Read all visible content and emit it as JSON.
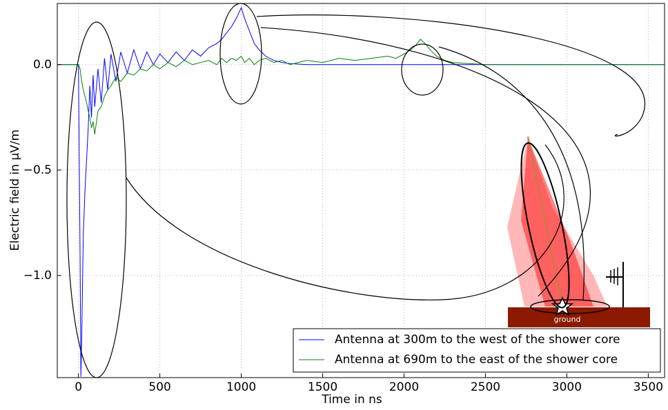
{
  "chart_data": {
    "type": "line",
    "xlabel": "Time in ns",
    "ylabel": "Electric field in μV/m",
    "x": [
      -130,
      -50,
      0,
      10,
      15,
      20,
      30,
      40,
      50,
      60,
      70,
      80,
      90,
      100,
      120,
      140,
      160,
      180,
      200,
      230,
      260,
      300,
      340,
      380,
      420,
      460,
      500,
      550,
      600,
      650,
      700,
      750,
      800,
      850,
      880,
      910,
      940,
      970,
      1000,
      1020,
      1050,
      1080,
      1110,
      1150,
      1200,
      1250,
      1300,
      1400,
      1500,
      1600,
      1700,
      1800,
      1900,
      1950,
      2000,
      2040,
      2070,
      2100,
      2130,
      2160,
      2200,
      2250,
      2300,
      2400,
      2500,
      2700,
      3000,
      3300,
      3600
    ],
    "series": [
      {
        "name": "Antenna at 300m to the west of the shower core",
        "color": "#0000ff",
        "values": [
          0,
          0,
          0,
          -0.9,
          -1.48,
          -1.3,
          -0.8,
          -0.6,
          -0.45,
          -0.3,
          -0.1,
          -0.25,
          -0.05,
          -0.2,
          -0.02,
          -0.18,
          0.03,
          -0.12,
          0.05,
          -0.08,
          0.06,
          -0.04,
          0.07,
          -0.02,
          0.06,
          0,
          0.05,
          0.01,
          0.06,
          0.02,
          0.07,
          0.04,
          0.08,
          0.1,
          0.12,
          0.15,
          0.18,
          0.22,
          0.27,
          0.22,
          0.16,
          0.1,
          0.07,
          0.04,
          0.02,
          0.01,
          0.005,
          0,
          0,
          0,
          0,
          0,
          0,
          0,
          0,
          0,
          0,
          0,
          0,
          0,
          0,
          0,
          0,
          0,
          0,
          0,
          0,
          0,
          0
        ]
      },
      {
        "name": "Antenna at 690m to the east of the shower core",
        "color": "#008000",
        "values": [
          0,
          0,
          0,
          -0.02,
          -0.05,
          -0.08,
          -0.12,
          -0.15,
          -0.18,
          -0.22,
          -0.25,
          -0.3,
          -0.27,
          -0.33,
          -0.22,
          -0.2,
          -0.15,
          -0.12,
          -0.1,
          -0.06,
          -0.08,
          -0.04,
          -0.05,
          -0.02,
          -0.03,
          0,
          -0.02,
          0.01,
          -0.01,
          0.02,
          0,
          0.01,
          0.02,
          0,
          0.03,
          0.01,
          0.03,
          0.02,
          0.04,
          0.01,
          0.03,
          0,
          0.02,
          0.03,
          0.01,
          0.02,
          0,
          0.02,
          0.01,
          0.03,
          0.02,
          0.03,
          0.04,
          0.03,
          0.05,
          0.07,
          0.09,
          0.12,
          0.1,
          0.07,
          0.04,
          0.02,
          0.01,
          0.005,
          0,
          0,
          0,
          0,
          0
        ]
      }
    ],
    "xlim": [
      -130,
      3600
    ],
    "ylim": [
      -1.484,
      0.29
    ],
    "xticks": [
      0,
      500,
      1000,
      1500,
      2000,
      2500,
      3000,
      3500
    ],
    "yticks": [
      {
        "value": -1,
        "label": "−1.0"
      },
      {
        "value": -0.5,
        "label": "−0.5"
      },
      {
        "value": 0,
        "label": "0.0"
      }
    ],
    "grid": true,
    "legend": "lower right",
    "annotations": [
      "ground"
    ]
  }
}
